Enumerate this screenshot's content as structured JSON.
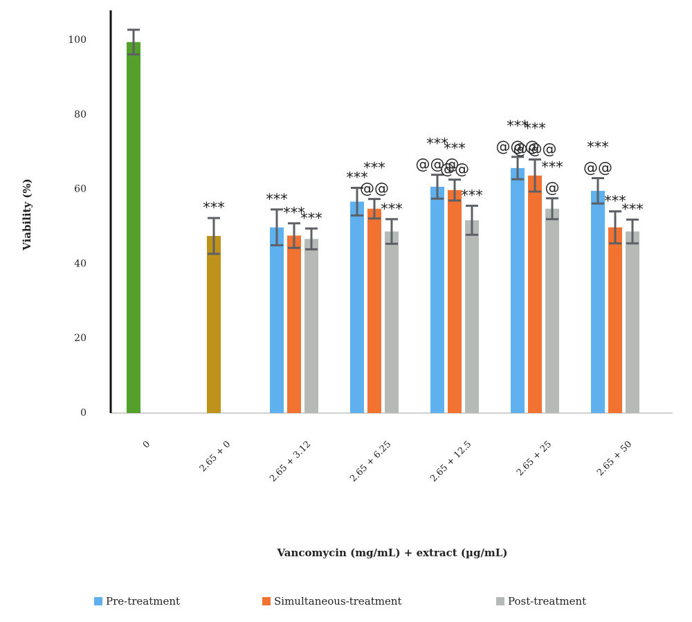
{
  "chart_data": {
    "type": "bar",
    "title": null,
    "xlabel": "Vancomycin (mg/mL) + extract (µg/mL)",
    "ylabel": "Viability (%)",
    "categories": [
      "0",
      "2.65 + 0",
      "2.65 + 3.12",
      "2.65 + 6.25",
      "2.65 + 12.5",
      "2.65 + 25",
      "2.65 + 50"
    ],
    "values": [
      99.5,
      47.5,
      null,
      null,
      null,
      null,
      null
    ],
    "errors": [
      3.3,
      4.8,
      null,
      null,
      null,
      null,
      null
    ],
    "colors": [
      "#53a02a",
      "#bf921c",
      null,
      null,
      null,
      null,
      null
    ],
    "annotations": [
      [],
      [
        "***"
      ],
      [],
      [],
      [],
      [],
      []
    ],
    "series": [
      {
        "name": "Pre-treatment",
        "color": "#5eb0ee",
        "values": [
          null,
          null,
          49.8,
          56.7,
          60.7,
          65.7,
          59.6
        ],
        "errors": [
          null,
          null,
          4.8,
          3.7,
          3.2,
          3.0,
          3.4
        ],
        "annotations": [
          [],
          [],
          [
            "***"
          ],
          [
            "***"
          ],
          [
            "***",
            "@@@"
          ],
          [
            "***",
            "@@@"
          ],
          [
            "***",
            "@@"
          ]
        ]
      },
      {
        "name": "Simultaneous-treatment",
        "color": "#f27231",
        "values": [
          null,
          null,
          47.6,
          54.8,
          59.8,
          63.7,
          49.8
        ],
        "errors": [
          null,
          null,
          3.3,
          2.6,
          2.8,
          4.3,
          4.3
        ],
        "annotations": [
          [],
          [],
          [
            "***"
          ],
          [
            "***",
            "@@"
          ],
          [
            "***",
            "@@"
          ],
          [
            "***",
            "@@@"
          ],
          [
            "***"
          ]
        ]
      },
      {
        "name": "Post-treatment",
        "color": "#b5bab6",
        "values": [
          null,
          null,
          46.7,
          48.7,
          51.7,
          54.8,
          48.7
        ],
        "errors": [
          null,
          null,
          2.8,
          3.3,
          3.9,
          2.8,
          3.2
        ],
        "annotations": [
          [],
          [],
          [
            "***"
          ],
          [
            "***"
          ],
          [
            "***"
          ],
          [
            "***",
            "@"
          ],
          [
            "***"
          ]
        ]
      }
    ],
    "ylim": [
      0,
      108
    ],
    "yticks": [
      0,
      20,
      40,
      60,
      80,
      100
    ],
    "grid": false,
    "legend": "bottom"
  }
}
